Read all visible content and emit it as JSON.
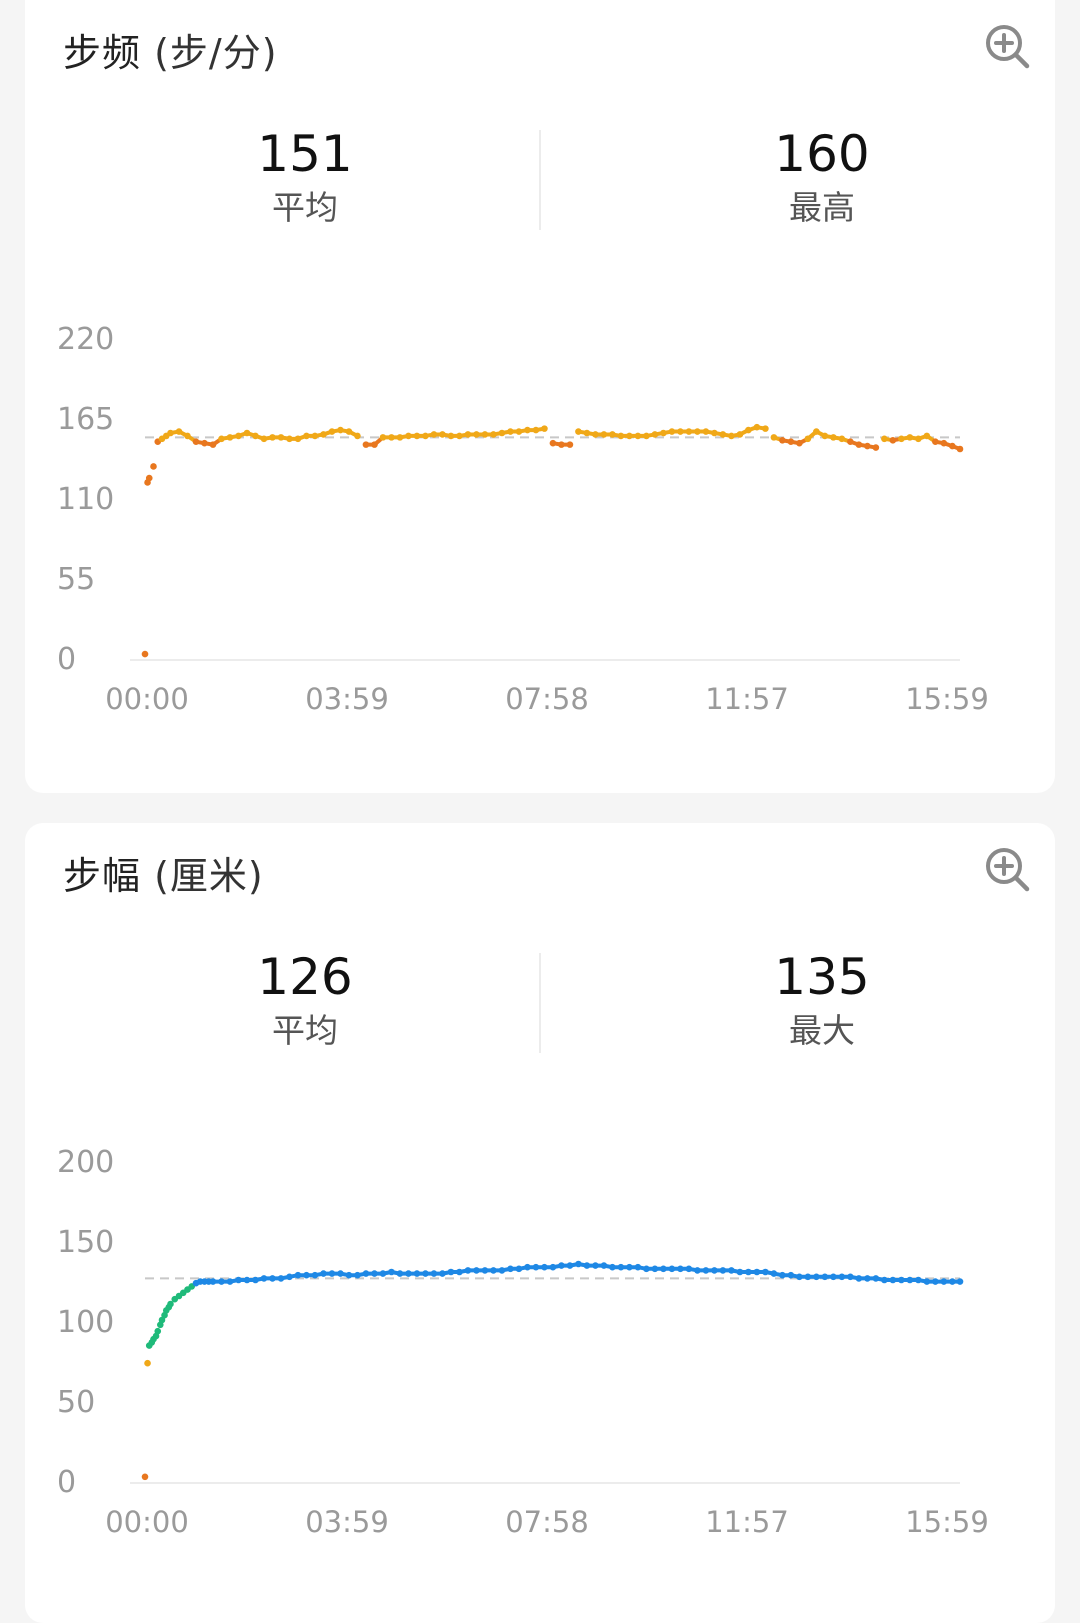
{
  "cadence": {
    "title": "步频",
    "unit": "(步/分)",
    "avg_value": "151",
    "avg_label": "平均",
    "max_value": "160",
    "max_label": "最高",
    "icon": "zoom-in-icon"
  },
  "stride": {
    "title": "步幅",
    "unit": "(厘米)",
    "avg_value": "126",
    "avg_label": "平均",
    "max_value": "135",
    "max_label": "最大",
    "icon": "zoom-in-icon"
  },
  "chart_data": [
    {
      "type": "scatter",
      "x_ticks": [
        "00:00",
        "03:59",
        "07:58",
        "11:57",
        "15:59"
      ],
      "y_ticks": [
        0,
        55,
        110,
        165,
        220
      ],
      "ylim": [
        0,
        220
      ],
      "xlim_minutes": [
        0,
        959
      ],
      "avg_line": 151,
      "grid": false,
      "colors": {
        "low": "#e8771f",
        "mid": "#f0a818"
      },
      "x_minutes": [
        0,
        3,
        5,
        10,
        15,
        20,
        25,
        30,
        40,
        50,
        60,
        70,
        80,
        90,
        100,
        110,
        120,
        130,
        140,
        150,
        160,
        170,
        180,
        190,
        200,
        210,
        220,
        230,
        240,
        250,
        260,
        270,
        280,
        290,
        300,
        310,
        320,
        330,
        340,
        350,
        360,
        370,
        380,
        390,
        400,
        410,
        420,
        430,
        440,
        450,
        460,
        470,
        480,
        490,
        500,
        510,
        520,
        530,
        540,
        550,
        560,
        570,
        580,
        590,
        600,
        610,
        620,
        630,
        640,
        650,
        660,
        670,
        680,
        690,
        700,
        710,
        720,
        730,
        740,
        750,
        760,
        770,
        780,
        790,
        800,
        810,
        820,
        830,
        840,
        850,
        860,
        870,
        880,
        890,
        900,
        910,
        920,
        930,
        940,
        950,
        959
      ],
      "y_values": [
        2,
        120,
        123,
        131,
        148,
        150,
        152,
        154,
        155,
        152,
        148,
        147,
        146,
        150,
        151,
        152,
        154,
        152,
        150,
        151,
        151,
        150,
        150,
        152,
        152,
        153,
        155,
        156,
        155,
        152,
        146,
        146,
        151,
        151,
        151,
        152,
        152,
        152,
        153,
        153,
        152,
        152,
        153,
        153,
        153,
        153,
        154,
        155,
        155,
        156,
        156,
        157,
        147,
        146,
        146,
        155,
        154,
        153,
        153,
        153,
        152,
        152,
        152,
        152,
        153,
        154,
        155,
        155,
        155,
        155,
        155,
        154,
        153,
        152,
        153,
        156,
        158,
        157,
        151,
        149,
        148,
        147,
        150,
        155,
        152,
        151,
        150,
        148,
        146,
        145,
        144,
        150,
        149,
        150,
        151,
        150,
        152,
        148,
        147,
        145,
        143
      ]
    },
    {
      "type": "scatter",
      "x_ticks": [
        "00:00",
        "03:59",
        "07:58",
        "11:57",
        "15:59"
      ],
      "y_ticks": [
        0,
        50,
        100,
        150,
        200
      ],
      "ylim": [
        0,
        200
      ],
      "xlim_minutes": [
        0,
        959
      ],
      "avg_line": 126,
      "grid": false,
      "colors": {
        "low": "#e8771f",
        "mid": "#f0a818",
        "ramp": "#1fba7a",
        "main": "#1e88e5"
      },
      "x_minutes": [
        0,
        3,
        5,
        8,
        10,
        13,
        15,
        18,
        20,
        23,
        25,
        28,
        30,
        35,
        40,
        45,
        50,
        55,
        60,
        65,
        70,
        75,
        80,
        90,
        100,
        110,
        120,
        130,
        140,
        150,
        160,
        170,
        180,
        190,
        200,
        210,
        220,
        230,
        240,
        250,
        260,
        270,
        280,
        290,
        300,
        310,
        320,
        330,
        340,
        350,
        360,
        370,
        380,
        390,
        400,
        410,
        420,
        430,
        440,
        450,
        460,
        470,
        480,
        490,
        500,
        510,
        520,
        530,
        540,
        550,
        560,
        570,
        580,
        590,
        600,
        610,
        620,
        630,
        640,
        650,
        660,
        670,
        680,
        690,
        700,
        710,
        720,
        730,
        740,
        750,
        760,
        770,
        780,
        790,
        800,
        810,
        820,
        830,
        840,
        850,
        860,
        870,
        880,
        890,
        900,
        910,
        920,
        930,
        940,
        950,
        959
      ],
      "y_values": [
        2,
        73,
        84,
        86,
        88,
        90,
        93,
        97,
        100,
        103,
        106,
        108,
        110,
        113,
        115,
        117,
        119,
        121,
        123,
        124,
        124,
        124,
        124,
        124,
        124,
        125,
        125,
        125,
        126,
        126,
        126,
        127,
        128,
        128,
        128,
        129,
        129,
        129,
        128,
        128,
        129,
        129,
        129,
        130,
        129,
        129,
        129,
        129,
        129,
        129,
        130,
        130,
        131,
        131,
        131,
        131,
        131,
        132,
        132,
        133,
        133,
        133,
        133,
        134,
        134,
        135,
        134,
        134,
        134,
        133,
        133,
        133,
        133,
        132,
        132,
        132,
        132,
        132,
        132,
        131,
        131,
        131,
        131,
        131,
        130,
        130,
        130,
        130,
        129,
        128,
        128,
        127,
        127,
        127,
        127,
        127,
        127,
        127,
        126,
        126,
        126,
        125,
        125,
        125,
        125,
        125,
        124,
        124,
        124,
        124,
        124
      ]
    }
  ]
}
